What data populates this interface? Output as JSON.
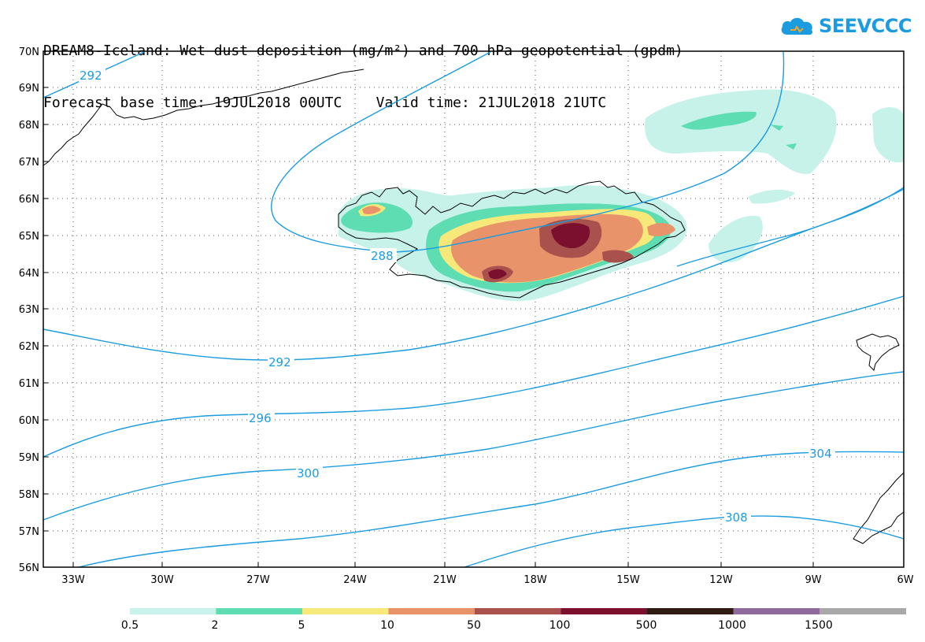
{
  "title": {
    "line1": "DREAM8-Iceland: Wet dust deposition (mg/m²) and 700 hPa geopotential (gpdm)",
    "line2": "Forecast base time: 19JUL2018 00UTC    Valid time: 21JUL2018 21UTC"
  },
  "logo": {
    "text": "SEEVCCC",
    "icon": "cloud-icon",
    "color": "#1b9ce0"
  },
  "map": {
    "lat_labels": [
      "70N",
      "69N",
      "68N",
      "67N",
      "66N",
      "65N",
      "64N",
      "63N",
      "62N",
      "61N",
      "60N",
      "59N",
      "58N",
      "57N",
      "56N"
    ],
    "lon_labels": [
      "33W",
      "30W",
      "27W",
      "24W",
      "21W",
      "18W",
      "15W",
      "12W",
      "9W",
      "6W"
    ],
    "contour_labels": [
      "292",
      "288",
      "292",
      "296",
      "300",
      "304",
      "308"
    ],
    "contour_color": "#1b9ce0"
  },
  "colorbar": {
    "labels": [
      "0.5",
      "2",
      "5",
      "10",
      "50",
      "100",
      "500",
      "1000",
      "1500"
    ],
    "colors": [
      "#c6f2ea",
      "#5fddb2",
      "#f7e87a",
      "#e9936a",
      "#a9514d",
      "#7a0f2e",
      "#2e1c12",
      "#8d6a9a",
      "#a8a8a8"
    ]
  }
}
